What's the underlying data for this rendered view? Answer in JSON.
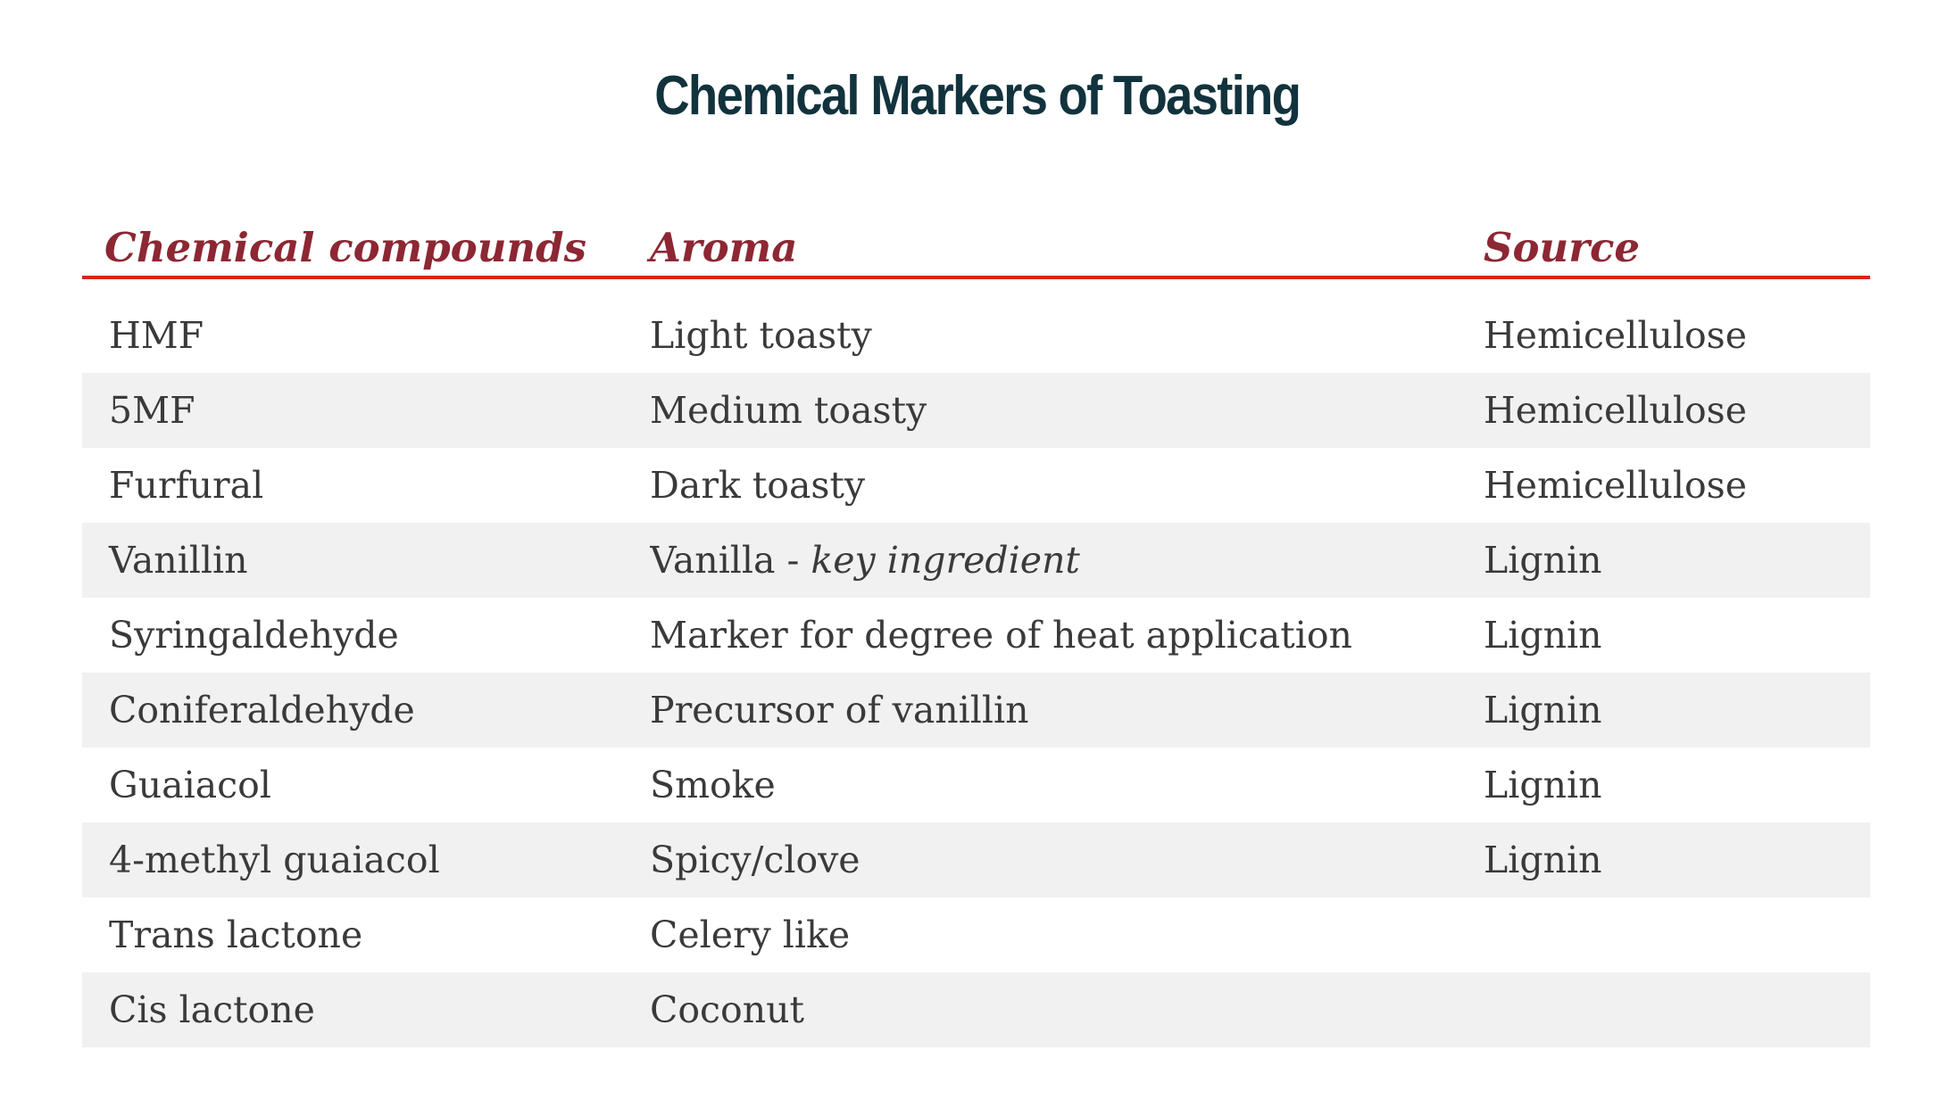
{
  "title": {
    "text": "Chemical Markers of Toasting"
  },
  "colors": {
    "title": "#12333d",
    "column_header": "#8c2733",
    "header_rule": "#d8251c",
    "row_stripe": "#f1f1f1",
    "body_text": "#3a3a3a",
    "background": "#ffffff"
  },
  "table": {
    "headers": [
      {
        "label": "Chemical compounds"
      },
      {
        "label": "Aroma"
      },
      {
        "label": "Source"
      }
    ],
    "rows": [
      {
        "compound": "HMF",
        "aroma": "Light toasty",
        "aroma_em": "",
        "source": "Hemicellulose"
      },
      {
        "compound": "5MF",
        "aroma": "Medium toasty",
        "aroma_em": "",
        "source": "Hemicellulose"
      },
      {
        "compound": "Furfural",
        "aroma": "Dark toasty",
        "aroma_em": "",
        "source": "Hemicellulose"
      },
      {
        "compound": "Vanillin",
        "aroma": "Vanilla - ",
        "aroma_em": "key ingredient",
        "source": "Lignin"
      },
      {
        "compound": "Syringaldehyde",
        "aroma": "Marker for degree of heat application",
        "aroma_em": "",
        "source": "Lignin"
      },
      {
        "compound": "Coniferaldehyde",
        "aroma": "Precursor of vanillin",
        "aroma_em": "",
        "source": "Lignin"
      },
      {
        "compound": "Guaiacol",
        "aroma": "Smoke",
        "aroma_em": "",
        "source": "Lignin"
      },
      {
        "compound": "4-methyl guaiacol",
        "aroma": "Spicy/clove",
        "aroma_em": "",
        "source": "Lignin"
      },
      {
        "compound": "Trans lactone",
        "aroma": "Celery like",
        "aroma_em": "",
        "source": ""
      },
      {
        "compound": "Cis lactone",
        "aroma": "Coconut",
        "aroma_em": "",
        "source": ""
      }
    ]
  },
  "chart_data": {
    "type": "table",
    "title": "Chemical Markers of Toasting",
    "columns": [
      "Chemical compounds",
      "Aroma",
      "Source"
    ],
    "rows": [
      [
        "HMF",
        "Light toasty",
        "Hemicellulose"
      ],
      [
        "5MF",
        "Medium toasty",
        "Hemicellulose"
      ],
      [
        "Furfural",
        "Dark toasty",
        "Hemicellulose"
      ],
      [
        "Vanillin",
        "Vanilla - key ingredient",
        "Lignin"
      ],
      [
        "Syringaldehyde",
        "Marker for degree of heat application",
        "Lignin"
      ],
      [
        "Coniferaldehyde",
        "Precursor of vanillin",
        "Lignin"
      ],
      [
        "Guaiacol",
        "Smoke",
        "Lignin"
      ],
      [
        "4-methyl guaiacol",
        "Spicy/clove",
        "Lignin"
      ],
      [
        "Trans lactone",
        "Celery like",
        ""
      ],
      [
        "Cis lactone",
        "Coconut",
        ""
      ]
    ],
    "layout": {
      "striped_rows": "even rows shaded #f1f1f1",
      "header_style": "italic maroon serif with red underline rule",
      "emphasis": "row 4 aroma phrase 'key ingredient' is italic"
    }
  }
}
